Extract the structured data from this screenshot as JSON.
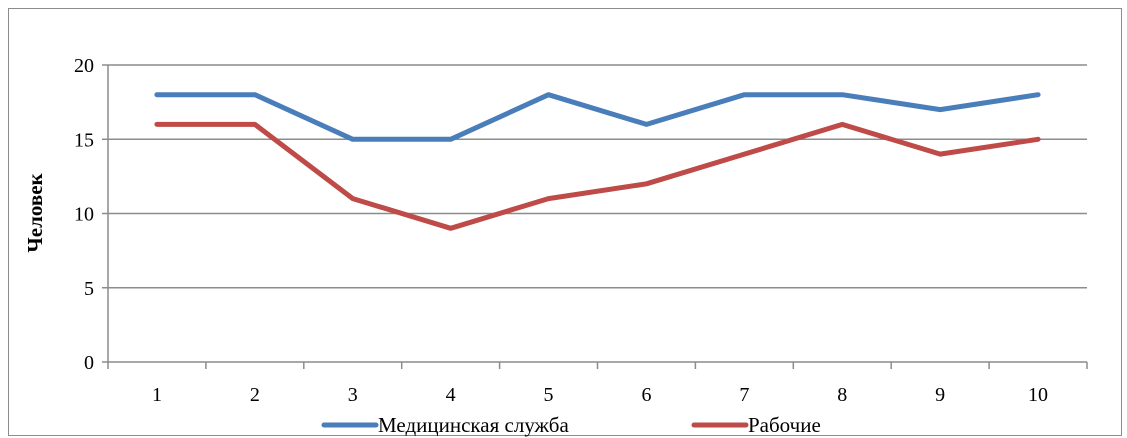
{
  "chart_data": {
    "type": "line",
    "categories": [
      "1",
      "2",
      "3",
      "4",
      "5",
      "6",
      "7",
      "8",
      "9",
      "10"
    ],
    "series": [
      {
        "name": "Медицинская служба",
        "values": [
          18,
          18,
          15,
          15,
          18,
          16,
          18,
          18,
          17,
          18
        ],
        "color": "#4a7ebb"
      },
      {
        "name": "Рабочие",
        "values": [
          16,
          16,
          11,
          9,
          11,
          12,
          14,
          16,
          14,
          15
        ],
        "color": "#be4b48"
      }
    ],
    "ylabel": "Человек",
    "ylim": [
      0,
      20
    ],
    "yticks": [
      "0",
      "5",
      "10",
      "15",
      "20"
    ],
    "grid": true,
    "legend": "bottom"
  }
}
